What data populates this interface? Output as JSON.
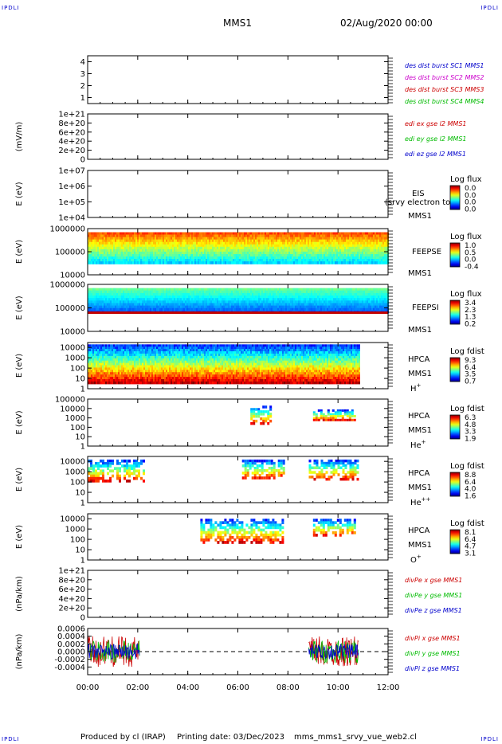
{
  "corners": {
    "tl": "IPDLI",
    "tr": "IPDLI",
    "bl": "IPDLI",
    "br": "IPDLI"
  },
  "header": {
    "title": "MMS1",
    "datetime": "02/Aug/2020 00:00"
  },
  "footer": {
    "produced": "Produced by cl (IRAP)",
    "printing": "Printing date: 03/Dec/2023",
    "file": "mms_mms1_srvy_vue_web2.cl"
  },
  "colors": {
    "red": "#cc0000",
    "green": "#00bb00",
    "blue": "#0000cc",
    "magenta": "#cc00cc",
    "black": "#000000"
  },
  "chart_data": [
    {
      "type": "line",
      "ylabel": "",
      "y_ticks": [
        "4",
        "3",
        "2",
        "1"
      ],
      "ylim": [
        0.5,
        4.5
      ],
      "x_ticks": [
        "00:00",
        "02:00",
        "04:00",
        "06:00",
        "08:00",
        "10:00",
        "12:00"
      ],
      "legend": [
        {
          "label": "des dist burst SC1 MMS1",
          "color": "#0000cc"
        },
        {
          "label": "des dist burst SC2 MMS2",
          "color": "#cc00cc"
        },
        {
          "label": "des dist burst SC3 MMS3",
          "color": "#cc0000"
        },
        {
          "label": "des dist burst SC4 MMS4",
          "color": "#00bb00"
        }
      ],
      "series": []
    },
    {
      "type": "line",
      "ylabel": "(mV/m)",
      "y_ticks": [
        "1e+21",
        "8e+20",
        "6e+20",
        "4e+20",
        "2e+20",
        "0"
      ],
      "ylim": [
        0,
        1e+21
      ],
      "zero_line": true,
      "legend": [
        {
          "label": "edi ex gse l2 MMS1",
          "color": "#cc0000"
        },
        {
          "label": "edi ey gse l2 MMS1",
          "color": "#00bb00"
        },
        {
          "label": "edi ez gse l2 MMS1",
          "color": "#0000cc"
        }
      ],
      "series": []
    },
    {
      "type": "heatmap",
      "ylabel": "E (eV)",
      "y_ticks": [
        "1e+07",
        "1e+06",
        "1e+05",
        "1e+04"
      ],
      "log_y": true,
      "ylim": [
        10000.0,
        10000000.0
      ],
      "instrument": [
        "EIS",
        "MMS1"
      ],
      "overlay_text": "(srvy electron to",
      "colorbar": {
        "title": "Log flux",
        "labels": [
          "0.0",
          "0.0",
          "0.0",
          "0.0"
        ]
      },
      "data": []
    },
    {
      "type": "heatmap",
      "ylabel": "E (eV)",
      "y_ticks": [
        "1000000",
        "100000",
        "10000"
      ],
      "log_y": true,
      "ylim": [
        10000.0,
        1000000.0
      ],
      "instrument": [
        "FEEPSE",
        "MMS1"
      ],
      "colorbar": {
        "title": "Log flux",
        "labels": [
          "1.0",
          "0.5",
          "0.0",
          "-0.4"
        ]
      },
      "coverage": [
        {
          "start": "00:00",
          "end": "12:00",
          "emin": 30000,
          "emax": 700000
        }
      ]
    },
    {
      "type": "heatmap",
      "ylabel": "E (eV)",
      "y_ticks": [
        "1000000",
        "100000",
        "10000"
      ],
      "log_y": true,
      "ylim": [
        10000.0,
        1000000.0
      ],
      "instrument": [
        "FEEPSI",
        "MMS1"
      ],
      "colorbar": {
        "title": "Log flux",
        "labels": [
          "3.4",
          "2.3",
          "1.3",
          "0.2"
        ]
      },
      "coverage": [
        {
          "start": "00:00",
          "end": "12:00",
          "emin": 60000,
          "emax": 700000
        }
      ]
    },
    {
      "type": "heatmap",
      "ylabel": "E (eV)",
      "y_ticks": [
        "10000",
        "1000",
        "100",
        "10",
        "1"
      ],
      "log_y": true,
      "ylim": [
        1,
        30000
      ],
      "instrument": [
        "HPCA",
        "MMS1",
        "H+"
      ],
      "colorbar": {
        "title": "Log fdist",
        "labels": [
          "9.3",
          "6.4",
          "3.5",
          "0.7"
        ]
      },
      "coverage": [
        {
          "start": "00:00",
          "end": "10:50",
          "emin": 3,
          "emax": 20000
        }
      ]
    },
    {
      "type": "heatmap",
      "ylabel": "E (eV)",
      "y_ticks": [
        "100000",
        "10000",
        "1000",
        "100",
        "10",
        "1"
      ],
      "log_y": true,
      "ylim": [
        1,
        100000
      ],
      "instrument": [
        "HPCA",
        "MMS1",
        "He+"
      ],
      "colorbar": {
        "title": "Log fdist",
        "labels": [
          "6.3",
          "4.8",
          "3.3",
          "1.9"
        ]
      },
      "coverage": [
        {
          "start": "06:30",
          "end": "07:20",
          "emin": 200,
          "emax": 20000
        },
        {
          "start": "09:00",
          "end": "10:40",
          "emin": 500,
          "emax": 8000
        }
      ]
    },
    {
      "type": "heatmap",
      "ylabel": "E (eV)",
      "y_ticks": [
        "10000",
        "1000",
        "100",
        "10",
        "1"
      ],
      "log_y": true,
      "ylim": [
        1,
        30000
      ],
      "instrument": [
        "HPCA",
        "MMS1",
        "He++"
      ],
      "colorbar": {
        "title": "Log fdist",
        "labels": [
          "8.8",
          "6.4",
          "4.0",
          "1.6"
        ]
      },
      "coverage": [
        {
          "start": "00:00",
          "end": "02:15",
          "emin": 100,
          "emax": 15000
        },
        {
          "start": "06:10",
          "end": "07:50",
          "emin": 200,
          "emax": 15000
        },
        {
          "start": "08:50",
          "end": "10:50",
          "emin": 150,
          "emax": 15000
        }
      ]
    },
    {
      "type": "heatmap",
      "ylabel": "E (eV)",
      "y_ticks": [
        "10000",
        "1000",
        "100",
        "10",
        "1"
      ],
      "log_y": true,
      "ylim": [
        1,
        30000
      ],
      "instrument": [
        "HPCA",
        "MMS1",
        "O+"
      ],
      "colorbar": {
        "title": "Log fdist",
        "labels": [
          "8.1",
          "6.4",
          "4.7",
          "3.1"
        ]
      },
      "coverage": [
        {
          "start": "04:30",
          "end": "07:50",
          "emin": 40,
          "emax": 10000
        },
        {
          "start": "09:00",
          "end": "10:40",
          "emin": 200,
          "emax": 10000
        }
      ]
    },
    {
      "type": "line",
      "ylabel": "(nPa/km)",
      "y_ticks": [
        "1e+21",
        "8e+20",
        "6e+20",
        "4e+20",
        "2e+20",
        "0"
      ],
      "ylim": [
        0,
        1e+21
      ],
      "zero_line": true,
      "legend": [
        {
          "label": "divPe x gse MMS1",
          "color": "#cc0000"
        },
        {
          "label": "divPe y gse MMS1",
          "color": "#00bb00"
        },
        {
          "label": "divPe z gse MMS1",
          "color": "#0000cc"
        }
      ],
      "series": []
    },
    {
      "type": "line",
      "ylabel": "(nPa/km)",
      "y_ticks": [
        "0.0006",
        "0.0004",
        "0.0002",
        "0.0000",
        "-0.0002",
        "-0.0004"
      ],
      "ylim": [
        -0.0006,
        0.0006
      ],
      "zero_line": true,
      "legend": [
        {
          "label": "divPi x gse MMS1",
          "color": "#cc0000"
        },
        {
          "label": "divPi y gse MMS1",
          "color": "#00bb00"
        },
        {
          "label": "divPi z gse MMS1",
          "color": "#0000cc"
        }
      ],
      "series": [
        {
          "name": "divPi x gse MMS1",
          "segments": [
            [
              "00:00",
              "02:05"
            ],
            [
              "08:50",
              "10:50"
            ]
          ],
          "amplitude": 0.0004
        },
        {
          "name": "divPi y gse MMS1",
          "segments": [
            [
              "00:00",
              "02:05"
            ],
            [
              "08:50",
              "10:50"
            ]
          ],
          "amplitude": 0.0003
        },
        {
          "name": "divPi z gse MMS1",
          "segments": [
            [
              "00:00",
              "02:05"
            ],
            [
              "08:50",
              "10:50"
            ]
          ],
          "amplitude": 0.0002
        }
      ]
    }
  ]
}
